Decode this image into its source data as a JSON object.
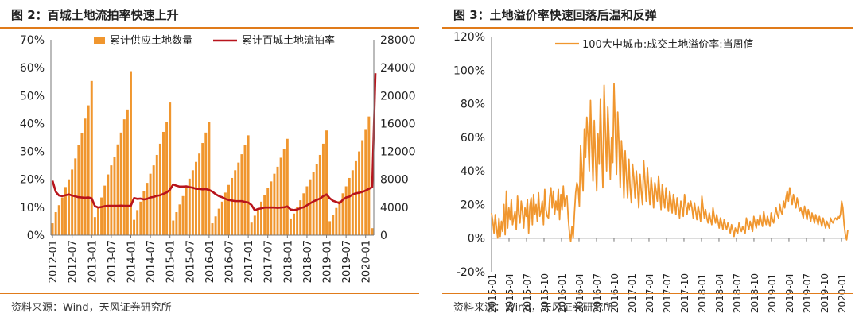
{
  "charts": [
    {
      "title": "图 2：百城土地流拍率快速上升",
      "source": "资料来源：Wind，天风证券研究所",
      "chart_data": {
        "type": "bar+line",
        "x_tick_labels": [
          "2012-01",
          "2012-07",
          "2013-01",
          "2013-07",
          "2014-01",
          "2014-07",
          "2015-01",
          "2015-07",
          "2016-01",
          "2016-07",
          "2017-01",
          "2017-07",
          "2018-01",
          "2018-07",
          "2019-01",
          "2019-07",
          "2020-01"
        ],
        "left_axis": {
          "ylim": [
            0,
            70
          ],
          "tick_labels": [
            "0%",
            "10%",
            "20%",
            "30%",
            "40%",
            "50%",
            "60%",
            "70%"
          ]
        },
        "right_axis": {
          "ylim": [
            0,
            28000
          ],
          "tick_labels": [
            "0",
            "4000",
            "8000",
            "12000",
            "16000",
            "20000",
            "24000",
            "28000"
          ]
        },
        "legend": {
          "placement": "top",
          "entries": [
            "累计供应土地数量",
            "累计百城土地流拍率"
          ]
        },
        "series": [
          {
            "name": "累计供应土地数量",
            "type": "bar",
            "axis": "right",
            "color": "#f0962e",
            "values": [
              1700,
              3300,
              4300,
              5400,
              6900,
              8000,
              9400,
              11000,
              12900,
              14600,
              16700,
              18600,
              22100,
              2600,
              4000,
              5400,
              7100,
              8700,
              10000,
              11200,
              13000,
              14700,
              16600,
              18000,
              23500,
              2200,
              3600,
              4800,
              6300,
              7500,
              8800,
              10000,
              11500,
              13100,
              14800,
              16200,
              19000,
              2100,
              3300,
              4400,
              5600,
              7000,
              8100,
              9300,
              10500,
              11700,
              13200,
              14700,
              16200,
              1700,
              2700,
              3800,
              4800,
              6100,
              7200,
              8200,
              9300,
              10400,
              11600,
              12900,
              14300,
              1800,
              2800,
              3800,
              4800,
              5800,
              6800,
              7700,
              8800,
              9800,
              11100,
              12400,
              13800,
              2400,
              3100,
              4100,
              5000,
              6000,
              7000,
              8000,
              9000,
              10200,
              11500,
              13100,
              15000,
              2000,
              2900,
              3900,
              4900,
              6000,
              7000,
              8200,
              9300,
              10600,
              12000,
              13600,
              15200,
              17000,
              1000
            ]
          },
          {
            "name": "累计百城土地流拍率",
            "type": "line",
            "axis": "left",
            "color": "#b8141c",
            "values": [
              19.5,
              15.5,
              14.2,
              14.0,
              14.3,
              14.6,
              14.2,
              13.9,
              13.6,
              13.5,
              13.4,
              13.5,
              13.2,
              10.4,
              9.9,
              10.1,
              10.4,
              10.5,
              10.5,
              10.5,
              10.5,
              10.6,
              10.5,
              10.5,
              10.5,
              13.3,
              13.0,
              13.1,
              12.8,
              13.0,
              13.5,
              13.7,
              14.1,
              14.3,
              14.8,
              15.3,
              16.3,
              18.2,
              17.7,
              17.4,
              17.4,
              17.5,
              17.2,
              17.0,
              16.6,
              16.6,
              16.4,
              16.5,
              16.2,
              15.6,
              14.7,
              14.0,
              13.6,
              13.0,
              12.6,
              12.4,
              12.2,
              12.2,
              12.2,
              11.9,
              11.7,
              10.8,
              8.9,
              9.4,
              9.6,
              9.9,
              9.9,
              9.9,
              9.9,
              9.8,
              9.9,
              10.0,
              10.3,
              9.2,
              9.0,
              9.2,
              9.7,
              10.0,
              10.7,
              11.4,
              12.1,
              12.6,
              13.1,
              14.0,
              14.6,
              13.2,
              12.3,
              11.9,
              11.4,
              12.7,
              13.5,
              13.8,
              14.6,
              15.0,
              15.2,
              15.5,
              16.0,
              16.6,
              17.2,
              58.0
            ]
          }
        ]
      }
    },
    {
      "title": "图 3：土地溢价率快速回落后温和反弹",
      "source": "资料来源：Wind，天风证券研究所",
      "chart_data": {
        "type": "line",
        "x_tick_labels": [
          "2015-01",
          "2015-04",
          "2015-07",
          "2015-10",
          "2016-01",
          "2016-04",
          "2016-07",
          "2016-10",
          "2017-01",
          "2017-04",
          "2017-07",
          "2017-10",
          "2018-01",
          "2018-04",
          "2018-07",
          "2018-10",
          "2019-01",
          "2019-04",
          "2019-07",
          "2019-10",
          "2020-01"
        ],
        "y_axis": {
          "ylim": [
            -20,
            120
          ],
          "tick_labels": [
            "-20%",
            "0%",
            "20%",
            "40%",
            "60%",
            "80%",
            "100%",
            "120%"
          ]
        },
        "legend": {
          "placement": "top",
          "entries": [
            "100大中城市:成交土地溢价率:当周值"
          ]
        },
        "series": [
          {
            "name": "100大中城市:成交土地溢价率:当周值",
            "color": "#f0962e",
            "values": [
              15,
              10,
              3,
              14,
              6,
              0,
              12,
              1,
              10,
              4,
              20,
              2,
              28,
              6,
              18,
              11,
              23,
              8,
              12,
              16,
              5,
              25,
              14,
              9,
              22,
              16,
              6,
              18,
              13,
              23,
              3,
              19,
              24,
              8,
              26,
              14,
              20,
              10,
              27,
              13,
              16,
              22,
              8,
              29,
              17,
              13,
              12,
              24,
              30,
              18,
              28,
              14,
              22,
              17,
              29,
              11,
              26,
              17,
              31,
              19,
              24,
              25,
              12,
              3,
              -2,
              7,
              0,
              15,
              27,
              33,
              30,
              19,
              55,
              40,
              28,
              65,
              48,
              72,
              60,
              40,
              82,
              55,
              34,
              70,
              48,
              28,
              62,
              44,
              83,
              52,
              30,
              91,
              64,
              40,
              78,
              58,
              35,
              60,
              45,
              92,
              66,
              38,
              75,
              56,
              30,
              58,
              46,
              24,
              52,
              38,
              24,
              47,
              30,
              21,
              44,
              36,
              24,
              40,
              30,
              18,
              38,
              28,
              20,
              46,
              34,
              22,
              42,
              30,
              20,
              36,
              28,
              18,
              33,
              28,
              22,
              37,
              27,
              17,
              32,
              24,
              18,
              30,
              22,
              16,
              28,
              22,
              15,
              26,
              21,
              14,
              24,
              18,
              12,
              22,
              18,
              13,
              26,
              20,
              14,
              21,
              17,
              22,
              18,
              12,
              21,
              16,
              11,
              19,
              15,
              10,
              25,
              18,
              12,
              17,
              12,
              9,
              15,
              11,
              8,
              18,
              13,
              9,
              14,
              10,
              6,
              12,
              9,
              5,
              11,
              8,
              5,
              9,
              6,
              3,
              8,
              5,
              1,
              6,
              4,
              3,
              9,
              6,
              4,
              7,
              5,
              3,
              12,
              8,
              5,
              10,
              7,
              4,
              13,
              9,
              6,
              11,
              8,
              14,
              10,
              7,
              16,
              11,
              8,
              13,
              10,
              7,
              15,
              11,
              9,
              14,
              18,
              14,
              12,
              20,
              16,
              14,
              22,
              18,
              24,
              28,
              22,
              30,
              25,
              20,
              26,
              22,
              18,
              24,
              20,
              16,
              18,
              15,
              12,
              19,
              15,
              11,
              17,
              14,
              10,
              15,
              12,
              9,
              14,
              11,
              8,
              13,
              10,
              7,
              12,
              9,
              6,
              10,
              8,
              6,
              12,
              10,
              9,
              11,
              12,
              11,
              13,
              12,
              14,
              22,
              18,
              8,
              2,
              -1,
              5
            ]
          }
        ]
      }
    }
  ]
}
